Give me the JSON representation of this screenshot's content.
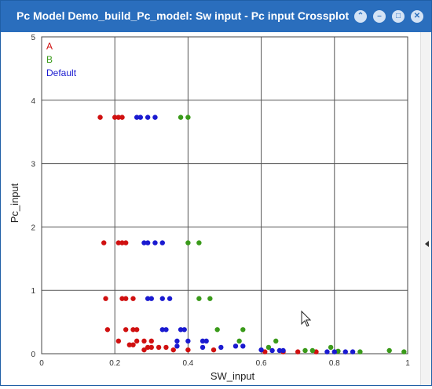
{
  "window": {
    "title": "Pc Model Demo_build_Pc_model: Sw input - Pc input Crossplot",
    "controls": [
      "restore-icon",
      "minimize-icon",
      "maximize-icon",
      "close-icon"
    ]
  },
  "chart_data": {
    "type": "scatter",
    "xlabel": "SW_input",
    "ylabel": "Pc_input",
    "xlim": [
      0,
      1
    ],
    "ylim": [
      0,
      5
    ],
    "x_ticks": [
      "0",
      "0.2",
      "0.4",
      "0.6",
      "0.8",
      "1"
    ],
    "y_ticks": [
      "0",
      "1",
      "2",
      "3",
      "4",
      "5"
    ],
    "grid": true,
    "legend_position": "top-left",
    "series": [
      {
        "name": "A",
        "color": "#d01010",
        "points": [
          [
            0.16,
            3.73
          ],
          [
            0.2,
            3.73
          ],
          [
            0.21,
            3.73
          ],
          [
            0.22,
            3.73
          ],
          [
            0.17,
            1.75
          ],
          [
            0.21,
            1.75
          ],
          [
            0.22,
            1.75
          ],
          [
            0.23,
            1.75
          ],
          [
            0.175,
            0.87
          ],
          [
            0.22,
            0.87
          ],
          [
            0.23,
            0.87
          ],
          [
            0.25,
            0.87
          ],
          [
            0.18,
            0.38
          ],
          [
            0.23,
            0.38
          ],
          [
            0.25,
            0.38
          ],
          [
            0.26,
            0.38
          ],
          [
            0.21,
            0.2
          ],
          [
            0.26,
            0.2
          ],
          [
            0.28,
            0.2
          ],
          [
            0.3,
            0.2
          ],
          [
            0.24,
            0.14
          ],
          [
            0.25,
            0.14
          ],
          [
            0.29,
            0.1
          ],
          [
            0.3,
            0.1
          ],
          [
            0.32,
            0.1
          ],
          [
            0.34,
            0.1
          ],
          [
            0.28,
            0.06
          ],
          [
            0.36,
            0.06
          ],
          [
            0.4,
            0.06
          ],
          [
            0.47,
            0.06
          ],
          [
            0.61,
            0.03
          ],
          [
            0.66,
            0.03
          ],
          [
            0.7,
            0.03
          ],
          [
            0.75,
            0.03
          ]
        ]
      },
      {
        "name": "B",
        "color": "#3a9a1a",
        "points": [
          [
            0.38,
            3.73
          ],
          [
            0.4,
            3.73
          ],
          [
            0.4,
            1.75
          ],
          [
            0.43,
            1.75
          ],
          [
            0.43,
            0.87
          ],
          [
            0.46,
            0.87
          ],
          [
            0.48,
            0.38
          ],
          [
            0.55,
            0.38
          ],
          [
            0.54,
            0.2
          ],
          [
            0.64,
            0.2
          ],
          [
            0.62,
            0.1
          ],
          [
            0.79,
            0.1
          ],
          [
            0.72,
            0.05
          ],
          [
            0.74,
            0.05
          ],
          [
            0.81,
            0.04
          ],
          [
            0.87,
            0.03
          ],
          [
            0.95,
            0.05
          ],
          [
            0.99,
            0.03
          ]
        ]
      },
      {
        "name": "Default",
        "color": "#1a1ad0",
        "points": [
          [
            0.26,
            3.73
          ],
          [
            0.27,
            3.73
          ],
          [
            0.29,
            3.73
          ],
          [
            0.31,
            3.73
          ],
          [
            0.28,
            1.75
          ],
          [
            0.29,
            1.75
          ],
          [
            0.31,
            1.75
          ],
          [
            0.33,
            1.75
          ],
          [
            0.29,
            0.87
          ],
          [
            0.3,
            0.87
          ],
          [
            0.33,
            0.87
          ],
          [
            0.35,
            0.87
          ],
          [
            0.33,
            0.38
          ],
          [
            0.34,
            0.38
          ],
          [
            0.38,
            0.38
          ],
          [
            0.39,
            0.38
          ],
          [
            0.37,
            0.2
          ],
          [
            0.4,
            0.2
          ],
          [
            0.44,
            0.2
          ],
          [
            0.45,
            0.2
          ],
          [
            0.37,
            0.12
          ],
          [
            0.44,
            0.1
          ],
          [
            0.49,
            0.1
          ],
          [
            0.53,
            0.12
          ],
          [
            0.55,
            0.12
          ],
          [
            0.6,
            0.06
          ],
          [
            0.63,
            0.05
          ],
          [
            0.65,
            0.05
          ],
          [
            0.66,
            0.05
          ],
          [
            0.78,
            0.03
          ],
          [
            0.8,
            0.03
          ],
          [
            0.83,
            0.03
          ],
          [
            0.85,
            0.03
          ]
        ]
      }
    ]
  }
}
